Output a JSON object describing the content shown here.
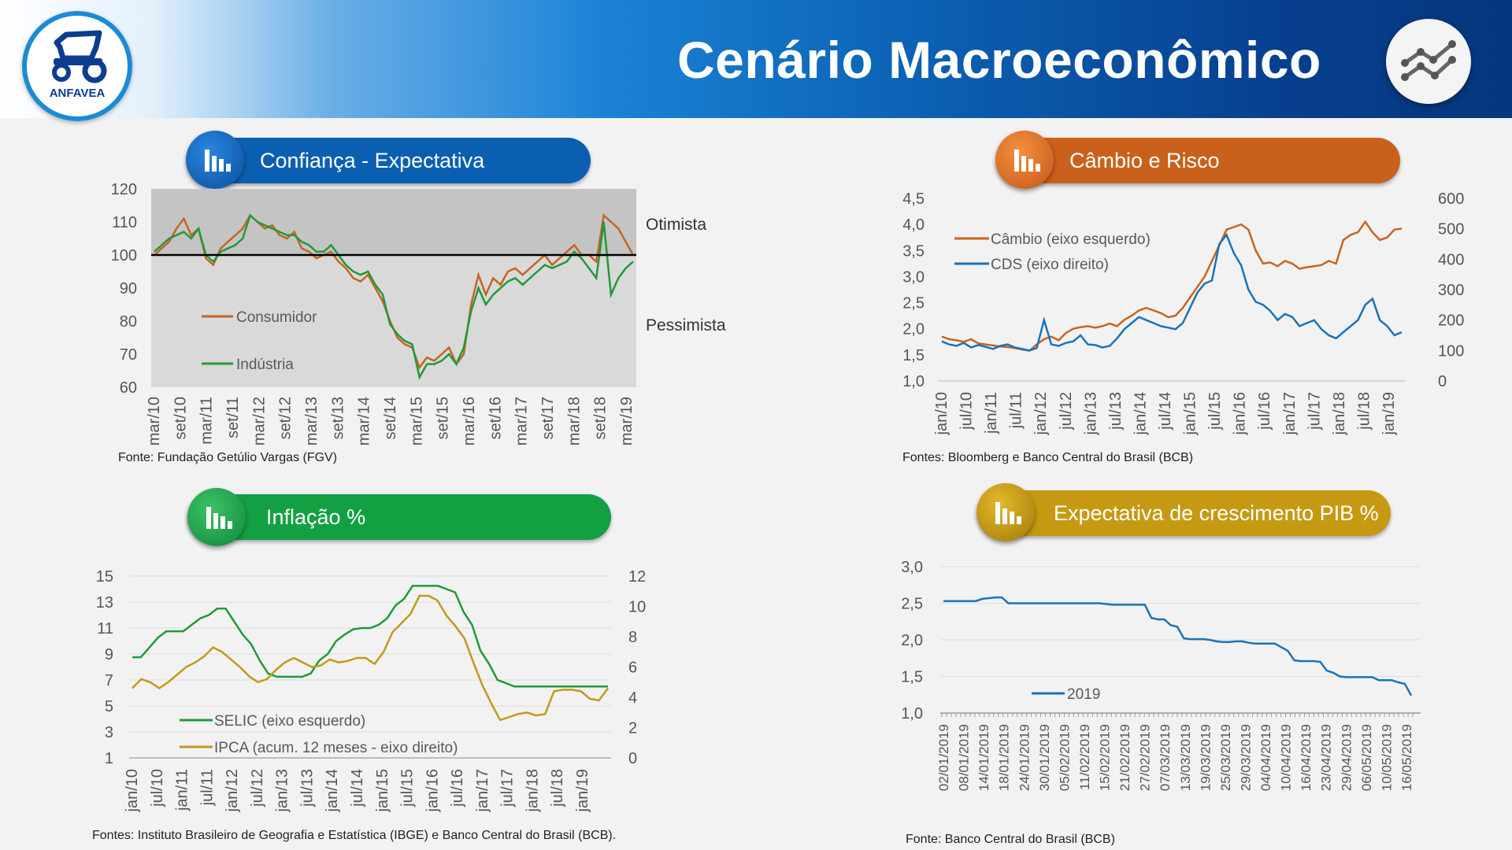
{
  "header": {
    "title": "Cenário Macroeconômico",
    "logo_text": "ANFAVEA",
    "logo_icon": "tractor-logo-icon",
    "corner_icon": "line-chart-icon",
    "colors": {
      "dark_blue": "#06367d",
      "accent_blue": "#1a82d6"
    }
  },
  "panels": {
    "confianca": {
      "title": "Confiança - Expectativa",
      "source": "Fonte: Fundação Getúlio Vargas (FGV)",
      "color": "#0b5fb1",
      "icon": "bar-chart-icon"
    },
    "cambio": {
      "title": "Câmbio e Risco",
      "source": "Fontes: Bloomberg e Banco Central do Brasil (BCB)",
      "color": "#c9611c",
      "icon": "bar-chart-icon"
    },
    "inflacao": {
      "title": "Inflação %",
      "source": "Fontes: Instituto Brasileiro de Geografia e Estatística (IBGE) e Banco Central do Brasil (BCB).",
      "color": "#13a043",
      "icon": "bar-chart-icon"
    },
    "pib": {
      "title": "Expectativa de crescimento PIB %",
      "source": "Fonte: Banco Central do Brasil (BCB)",
      "color": "#c59a12",
      "icon": "bar-chart-icon"
    }
  },
  "chart_data": [
    {
      "id": "confianca",
      "type": "line",
      "ylim": [
        60,
        120
      ],
      "yticks": [
        "60",
        "70",
        "80",
        "90",
        "100",
        "110",
        "120"
      ],
      "x_labels": [
        "mar/10",
        "set/10",
        "mar/11",
        "set/11",
        "mar/12",
        "set/12",
        "mar/13",
        "set/13",
        "mar/14",
        "set/14",
        "mar/15",
        "set/15",
        "mar/16",
        "set/16",
        "mar/17",
        "set/17",
        "mar/18",
        "set/18",
        "mar/19"
      ],
      "reference_line": 100,
      "annotations": [
        "Otimista",
        "Pessimista"
      ],
      "series": [
        {
          "name": "Consumidor",
          "color": "#c8641f",
          "values": [
            100,
            102,
            104,
            108,
            111,
            106,
            108,
            99,
            97,
            102,
            104,
            106,
            108,
            112,
            110,
            108,
            109,
            106,
            105,
            107,
            102,
            101,
            99,
            100,
            101,
            98,
            96,
            93,
            92,
            94,
            90,
            86,
            80,
            75,
            73,
            72,
            66,
            69,
            68,
            70,
            72,
            67,
            70,
            85,
            94,
            88,
            93,
            91,
            95,
            96,
            94,
            96,
            98,
            100,
            97,
            99,
            101,
            103,
            100,
            100,
            98,
            112,
            110,
            108,
            104,
            100
          ]
        },
        {
          "name": "Indústria",
          "color": "#1e9b3b",
          "values": [
            101,
            103,
            105,
            106,
            107,
            105,
            108,
            100,
            98,
            101,
            102,
            103,
            105,
            112,
            110,
            109,
            108,
            107,
            106,
            106,
            104,
            103,
            101,
            101,
            103,
            100,
            97,
            95,
            94,
            95,
            91,
            88,
            79,
            76,
            74,
            73,
            63,
            67,
            67,
            68,
            70,
            67,
            72,
            83,
            90,
            85,
            88,
            90,
            92,
            93,
            91,
            93,
            95,
            97,
            96,
            97,
            98,
            101,
            99,
            96,
            93,
            110,
            88,
            93,
            96,
            98
          ]
        }
      ]
    },
    {
      "id": "cambio",
      "type": "line",
      "ylim_left": [
        1.0,
        4.5
      ],
      "ylim_right": [
        0,
        600
      ],
      "yticks_left": [
        "1,0",
        "1,5",
        "2,0",
        "2,5",
        "3,0",
        "3,5",
        "4,0",
        "4,5"
      ],
      "yticks_right": [
        "0",
        "100",
        "200",
        "300",
        "400",
        "500",
        "600"
      ],
      "x_labels": [
        "jan/10",
        "jul/10",
        "jan/11",
        "jul/11",
        "jan/12",
        "jul/12",
        "jan/13",
        "jul/13",
        "jan/14",
        "jul/14",
        "jan/15",
        "jul/15",
        "jan/16",
        "jul/16",
        "jan/17",
        "jul/17",
        "jan/18",
        "jul/18",
        "jan/19"
      ],
      "series": [
        {
          "name": "Câmbio (eixo esquerdo)",
          "axis": "left",
          "color": "#c8641f",
          "values": [
            1.85,
            1.8,
            1.78,
            1.75,
            1.8,
            1.72,
            1.7,
            1.68,
            1.66,
            1.65,
            1.63,
            1.6,
            1.58,
            1.7,
            1.8,
            1.85,
            1.78,
            1.92,
            2.0,
            2.03,
            2.05,
            2.02,
            2.05,
            2.1,
            2.05,
            2.17,
            2.25,
            2.35,
            2.4,
            2.35,
            2.3,
            2.22,
            2.25,
            2.4,
            2.6,
            2.8,
            3.0,
            3.3,
            3.6,
            3.9,
            3.95,
            4.0,
            3.9,
            3.5,
            3.25,
            3.27,
            3.2,
            3.3,
            3.25,
            3.15,
            3.18,
            3.2,
            3.22,
            3.3,
            3.25,
            3.7,
            3.8,
            3.85,
            4.05,
            3.85,
            3.7,
            3.75,
            3.9,
            3.92
          ]
        },
        {
          "name": "CDS (eixo direito)",
          "axis": "right",
          "color": "#1a73b8",
          "values": [
            130,
            120,
            115,
            125,
            110,
            118,
            112,
            105,
            115,
            120,
            110,
            105,
            100,
            108,
            200,
            120,
            115,
            125,
            130,
            150,
            120,
            118,
            110,
            115,
            140,
            170,
            190,
            210,
            200,
            190,
            180,
            175,
            170,
            190,
            240,
            290,
            320,
            330,
            450,
            480,
            420,
            380,
            300,
            260,
            250,
            230,
            200,
            220,
            210,
            180,
            190,
            200,
            170,
            150,
            140,
            160,
            180,
            200,
            250,
            270,
            200,
            180,
            150,
            160
          ]
        }
      ]
    },
    {
      "id": "inflacao",
      "type": "line",
      "ylim_left": [
        1,
        15
      ],
      "ylim_right": [
        0,
        12
      ],
      "yticks_left": [
        "1",
        "3",
        "5",
        "7",
        "9",
        "11",
        "13",
        "15"
      ],
      "yticks_right": [
        "0",
        "2",
        "4",
        "6",
        "8",
        "10",
        "12"
      ],
      "x_labels": [
        "jan/10",
        "jul/10",
        "jan/11",
        "jul/11",
        "jan/12",
        "jul/12",
        "jan/13",
        "jul/13",
        "jan/14",
        "jul/14",
        "jan/15",
        "jul/15",
        "jan/16",
        "jul/16",
        "jan/17",
        "jul/17",
        "jan/18",
        "jul/18",
        "jan/19"
      ],
      "series": [
        {
          "name": "SELIC (eixo esquerdo)",
          "axis": "left",
          "color": "#1e9b3b",
          "values": [
            8.75,
            8.75,
            9.5,
            10.25,
            10.75,
            10.75,
            10.75,
            11.25,
            11.75,
            12.0,
            12.5,
            12.5,
            11.5,
            10.5,
            9.75,
            8.5,
            7.5,
            7.25,
            7.25,
            7.25,
            7.25,
            7.5,
            8.5,
            9.0,
            10.0,
            10.5,
            10.9,
            11.0,
            11.0,
            11.25,
            11.75,
            12.75,
            13.25,
            14.25,
            14.25,
            14.25,
            14.25,
            14.0,
            13.75,
            12.25,
            11.25,
            9.25,
            8.25,
            7.0,
            6.75,
            6.5,
            6.5,
            6.5,
            6.5,
            6.5,
            6.5,
            6.5,
            6.5,
            6.5,
            6.5,
            6.5,
            6.5
          ]
        },
        {
          "name": "IPCA (acum. 12 meses - eixo direito)",
          "axis": "right",
          "color": "#c09a1a",
          "values": [
            4.6,
            5.2,
            5.0,
            4.6,
            5.0,
            5.5,
            6.0,
            6.3,
            6.7,
            7.3,
            7.0,
            6.5,
            6.0,
            5.4,
            5.0,
            5.2,
            5.8,
            6.3,
            6.6,
            6.3,
            6.0,
            6.1,
            6.5,
            6.3,
            6.4,
            6.6,
            6.6,
            6.2,
            7.0,
            8.3,
            8.9,
            9.5,
            10.7,
            10.7,
            10.4,
            9.4,
            8.7,
            7.9,
            6.3,
            4.8,
            3.6,
            2.5,
            2.7,
            2.9,
            3.0,
            2.8,
            2.9,
            4.4,
            4.5,
            4.5,
            4.4,
            3.9,
            3.8,
            4.6
          ]
        }
      ]
    },
    {
      "id": "pib",
      "type": "line",
      "ylim": [
        1.0,
        3.0
      ],
      "yticks": [
        "1,0",
        "1,5",
        "2,0",
        "2,5",
        "3,0"
      ],
      "x_labels": [
        "02/01/2019",
        "08/01/2019",
        "14/01/2019",
        "18/01/2019",
        "24/01/2019",
        "30/01/2019",
        "05/02/2019",
        "11/02/2019",
        "15/02/2019",
        "21/02/2019",
        "27/02/2019",
        "07/03/2019",
        "13/03/2019",
        "19/03/2019",
        "25/03/2019",
        "29/03/2019",
        "04/04/2019",
        "10/04/2019",
        "16/04/2019",
        "23/04/2019",
        "29/04/2019",
        "06/05/2019",
        "10/05/2019",
        "16/05/2019"
      ],
      "series": [
        {
          "name": "2019",
          "color": "#1a73b8",
          "values": [
            2.53,
            2.53,
            2.53,
            2.53,
            2.53,
            2.53,
            2.56,
            2.57,
            2.58,
            2.58,
            2.5,
            2.5,
            2.5,
            2.5,
            2.5,
            2.5,
            2.5,
            2.5,
            2.5,
            2.5,
            2.5,
            2.5,
            2.5,
            2.5,
            2.5,
            2.49,
            2.48,
            2.48,
            2.48,
            2.48,
            2.48,
            2.48,
            2.3,
            2.28,
            2.28,
            2.2,
            2.18,
            2.02,
            2.01,
            2.01,
            2.01,
            2.0,
            1.98,
            1.97,
            1.97,
            1.98,
            1.98,
            1.96,
            1.95,
            1.95,
            1.95,
            1.95,
            1.9,
            1.85,
            1.72,
            1.71,
            1.71,
            1.71,
            1.7,
            1.58,
            1.55,
            1.5,
            1.49,
            1.49,
            1.49,
            1.49,
            1.49,
            1.45,
            1.45,
            1.45,
            1.42,
            1.4,
            1.24
          ]
        }
      ]
    }
  ]
}
